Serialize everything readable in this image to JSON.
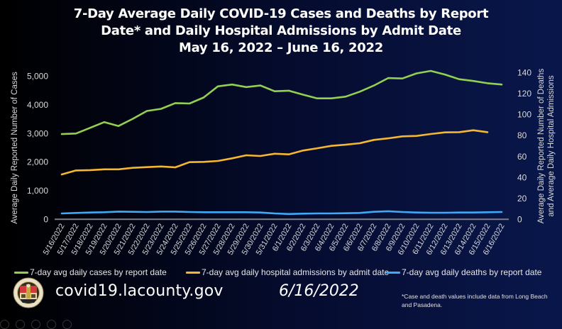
{
  "title": {
    "lines": [
      "7-Day Average Daily COVID-19 Cases and Deaths by Report",
      "Date* and Daily Hospital Admissions by Admit Date",
      "May 16, 2022 – June 16, 2022"
    ]
  },
  "footer": {
    "logo": "la-county-seal-icon",
    "website": "covid19.lacounty.gov",
    "date": "6/16/2022",
    "footnote": "*Case and death values include data from Long Beach and Pasadena."
  },
  "colors": {
    "cases": "#92d050",
    "admissions": "#f5b731",
    "deaths": "#3fa9f5",
    "axis_line": "#7f7f85"
  },
  "chart_data": {
    "type": "line",
    "title": "7-Day Average Daily COVID-19 Cases and Deaths by Report Date* and Daily Hospital Admissions by Admit Date, May 16, 2022 – June 16, 2022",
    "xlabel": "",
    "ylabel": "Average Daily Reported Number of Cases",
    "y2label": "Average Daily Reported Number of Deaths and Average Daily Hospital Admissions",
    "ylim": [
      0,
      5000
    ],
    "y2lim": [
      0,
      140
    ],
    "yticks": [
      "0",
      "1,000",
      "2,000",
      "3,000",
      "4,000",
      "5,000"
    ],
    "yticks_values": [
      0,
      1000,
      2000,
      3000,
      4000,
      5000
    ],
    "y2ticks": [
      "0",
      "20",
      "40",
      "60",
      "80",
      "100",
      "120",
      "140"
    ],
    "y2ticks_values": [
      0,
      20,
      40,
      60,
      80,
      100,
      120,
      140
    ],
    "grid": false,
    "legend_position": "bottom",
    "categories": [
      "5/16/2022",
      "5/17/2022",
      "5/18/2022",
      "5/19/2022",
      "5/20/2022",
      "5/21/2022",
      "5/22/2022",
      "5/23/2022",
      "5/24/2022",
      "5/25/2022",
      "5/26/2022",
      "5/27/2022",
      "5/28/2022",
      "5/29/2022",
      "5/30/2022",
      "5/31/2022",
      "6/1/2022",
      "6/2/2022",
      "6/3/2022",
      "6/4/2022",
      "6/5/2022",
      "6/6/2022",
      "6/7/2022",
      "6/8/2022",
      "6/9/2022",
      "6/10/2022",
      "6/11/2022",
      "6/12/2022",
      "6/13/2022",
      "6/14/2022",
      "6/15/2022",
      "6/16/2022"
    ],
    "series": [
      {
        "name": "7-day avg daily cases by report date",
        "axis": "left",
        "color": "#92d050",
        "values": [
          2980,
          3000,
          3200,
          3400,
          3265,
          3515,
          3790,
          3865,
          4065,
          4050,
          4260,
          4650,
          4715,
          4625,
          4680,
          4480,
          4500,
          4360,
          4230,
          4230,
          4290,
          4465,
          4680,
          4940,
          4925,
          5105,
          5190,
          5065,
          4900,
          4840,
          4760,
          4715
        ]
      },
      {
        "name": "7-day avg daily hospital admissions by admit date",
        "axis": "right",
        "color": "#f5b731",
        "values": [
          42.9,
          46.7,
          47.0,
          47.8,
          47.8,
          49.2,
          49.9,
          50.5,
          49.7,
          54.6,
          54.9,
          55.8,
          58.3,
          61.2,
          60.5,
          62.7,
          62.1,
          65.7,
          67.9,
          70.2,
          71.3,
          72.7,
          75.9,
          77.4,
          79.3,
          79.7,
          81.5,
          83.1,
          83.3,
          85.1,
          83.3,
          null
        ]
      },
      {
        "name": "7-day avg daily deaths by report date",
        "axis": "right",
        "color": "#3fa9f5",
        "values": [
          5.6,
          6.1,
          6.5,
          6.8,
          7.4,
          7.2,
          7.0,
          7.4,
          7.4,
          7.0,
          6.8,
          6.8,
          6.8,
          6.8,
          6.5,
          5.6,
          5.1,
          5.4,
          5.6,
          5.6,
          5.8,
          6.1,
          7.2,
          7.7,
          7.0,
          6.5,
          6.3,
          6.3,
          6.5,
          6.5,
          6.8,
          7.0
        ]
      }
    ]
  }
}
